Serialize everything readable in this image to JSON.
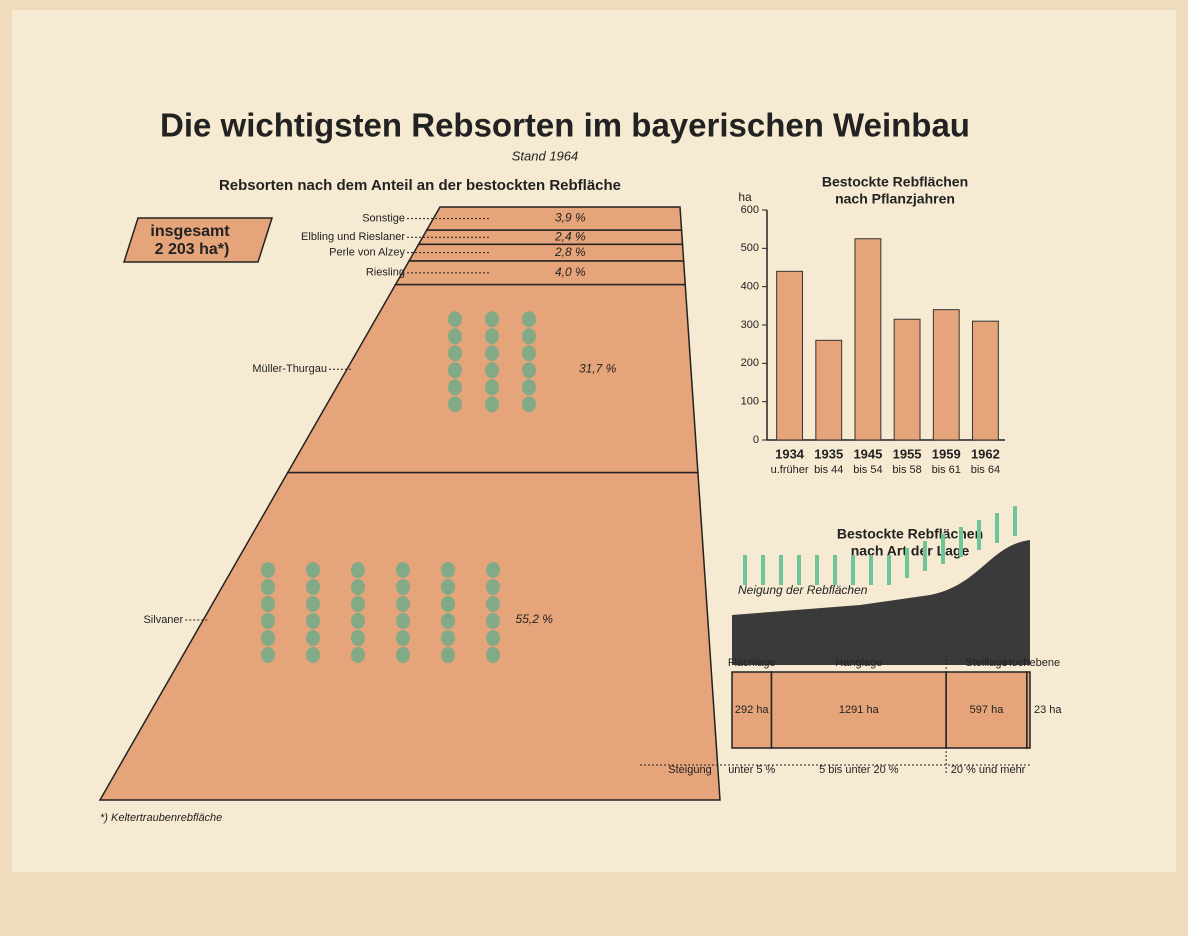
{
  "title": "Die wichtigsten Rebsorten im bayerischen Weinbau",
  "subtitle": "Stand 1964",
  "footnote": "*) Keltertraubenrebfläche",
  "chart_data": [
    {
      "type": "funnel",
      "title": "Rebsorten nach dem Anteil an der bestockten Rebfläche",
      "total_prefix": "insgesamt",
      "total": "2 203 ha*)",
      "categories": [
        "Sonstige",
        "Elbling und Rieslaner",
        "Perle von Alzey",
        "Riesling",
        "Müller-Thurgau",
        "Silvaner"
      ],
      "values": [
        3.9,
        2.4,
        2.8,
        4.0,
        31.7,
        55.2
      ],
      "value_labels": [
        "3,9 %",
        "2,4 %",
        "2,8 %",
        "4,0 %",
        "31,7 %",
        "55,2 %"
      ],
      "color": "#e6a47a"
    },
    {
      "type": "bar",
      "title": [
        "Bestockte Rebflächen",
        "nach Pflanzjahren"
      ],
      "y_label": "ha",
      "categories": [
        "1934",
        "1935",
        "1945",
        "1955",
        "1959",
        "1962"
      ],
      "category_sublabels": [
        "u.früher",
        "bis 44",
        "bis 54",
        "bis 58",
        "bis 61",
        "bis 64"
      ],
      "values": [
        440,
        260,
        525,
        315,
        340,
        310
      ],
      "ylim": [
        0,
        600
      ],
      "yticks": [
        0,
        100,
        200,
        300,
        400,
        500,
        600
      ],
      "color": "#e6a47a"
    },
    {
      "type": "strip",
      "title": [
        "Bestockte Rebflächen",
        "nach Art der Lage"
      ],
      "annotation": "Neigung der Rebflächen",
      "categories": [
        "Flachlage",
        "Hanglage",
        "Steillage",
        "Hochebene"
      ],
      "values": [
        292,
        1291,
        597,
        23
      ],
      "value_labels": [
        "292 ha",
        "1291 ha",
        "597 ha",
        "23 ha"
      ],
      "slope_label": "Steigung",
      "slope_groups": [
        "unter 5 %",
        "5 bis unter 20 %",
        "20 % und mehr"
      ],
      "color": "#e6a47a"
    }
  ]
}
